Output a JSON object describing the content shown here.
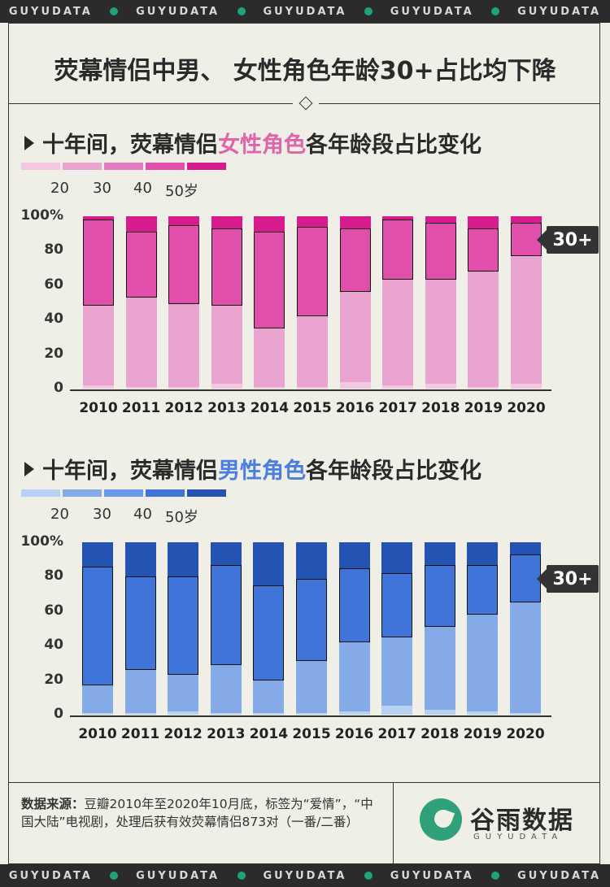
{
  "brand_strip": [
    "GUYUDATA",
    "GUYUDATA",
    "GUYUDATA",
    "GUYUDATA",
    "GUYUDATA"
  ],
  "main_title": "荧幕情侣中男、 女性角色年龄30+占比均下降",
  "female_section": {
    "title_prefix": "十年间，荧幕情侣",
    "title_highlight": "女性角色",
    "title_suffix": "各年龄段占比变化",
    "legend_colors": [
      "#f3c7e2",
      "#e8a3cf",
      "#e57bbf",
      "#e050ab",
      "#d81b8c"
    ],
    "legend_labels": [
      "20",
      "30",
      "40",
      "50岁"
    ],
    "tag": "30+"
  },
  "male_section": {
    "title_prefix": "十年间，荧幕情侣",
    "title_highlight": "男性角色",
    "title_suffix": "各年龄段占比变化",
    "legend_colors": [
      "#b8d0f2",
      "#85aae8",
      "#6b98ea",
      "#3f74d8",
      "#2354b3"
    ],
    "legend_labels": [
      "20",
      "30",
      "40",
      "50岁"
    ],
    "tag": "30+"
  },
  "y_ticks": [
    "100%",
    "80",
    "60",
    "40",
    "20",
    "0"
  ],
  "chart_data": [
    {
      "type": "bar",
      "stacked": true,
      "title": "十年间，荧幕情侣女性角色各年龄段占比变化",
      "categories": [
        "2010",
        "2011",
        "2012",
        "2013",
        "2014",
        "2015",
        "2016",
        "2017",
        "2018",
        "2019",
        "2020"
      ],
      "ylim": [
        0,
        100
      ],
      "series": [
        {
          "name": "20",
          "values": [
            2,
            1,
            1,
            3,
            1,
            1,
            4,
            2,
            3,
            1,
            3
          ]
        },
        {
          "name": "30",
          "values": [
            46,
            52,
            48,
            45,
            34,
            41,
            52,
            61,
            60,
            67,
            74
          ]
        },
        {
          "name": "40",
          "values": [
            50,
            38,
            46,
            45,
            56,
            52,
            37,
            35,
            33,
            25,
            19
          ]
        },
        {
          "name": "50岁",
          "values": [
            2,
            9,
            5,
            7,
            9,
            6,
            7,
            2,
            4,
            7,
            4
          ]
        }
      ]
    },
    {
      "type": "bar",
      "stacked": true,
      "title": "十年间，荧幕情侣男性角色各年龄段占比变化",
      "categories": [
        "2010",
        "2011",
        "2012",
        "2013",
        "2014",
        "2015",
        "2016",
        "2017",
        "2018",
        "2019",
        "2020"
      ],
      "ylim": [
        0,
        100
      ],
      "series": [
        {
          "name": "20",
          "values": [
            1,
            1,
            2,
            1,
            1,
            1,
            2,
            5,
            3,
            2,
            1
          ]
        },
        {
          "name": "30",
          "values": [
            16,
            25,
            21,
            28,
            19,
            30,
            40,
            40,
            48,
            56,
            64
          ]
        },
        {
          "name": "40",
          "values": [
            69,
            54,
            57,
            58,
            55,
            48,
            43,
            37,
            36,
            29,
            28
          ]
        },
        {
          "name": "50岁",
          "values": [
            14,
            20,
            20,
            13,
            25,
            21,
            15,
            18,
            13,
            13,
            7
          ]
        }
      ]
    }
  ],
  "footer": {
    "source_label": "数据来源：",
    "source_text": "豆瓣2010年至2020年10月底，标签为“爱情”，“中国大陆”电视剧，处理后获有效荧幕情侣873对（一番/二番）",
    "logo_name": "谷雨数据",
    "logo_sub": "GUYUDATA"
  }
}
